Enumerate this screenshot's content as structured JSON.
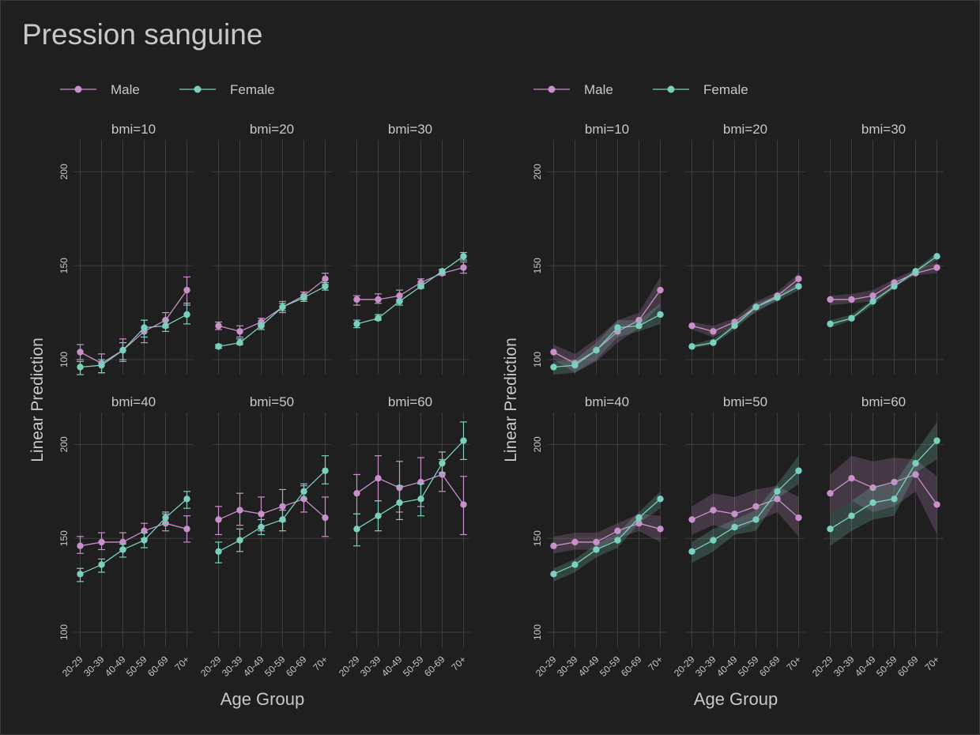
{
  "title": "Pression sanguine",
  "colors": {
    "male": "#c890c8",
    "female": "#7ad0bc",
    "background": "#1f1f1f",
    "text": "#c8c8c8",
    "grid": "#3e3e3e"
  },
  "chart_data": [
    {
      "type": "line",
      "variant": "error-bars",
      "legend": [
        "Male",
        "Female"
      ],
      "legend_position": "top",
      "facet_variable": "bmi",
      "facets": [
        "bmi=10",
        "bmi=20",
        "bmi=30",
        "bmi=40",
        "bmi=50",
        "bmi=60"
      ],
      "categories": [
        "20-29",
        "30-39",
        "40-49",
        "50-59",
        "60-69",
        "70+"
      ],
      "xlabel": "Age Group",
      "ylabel": "Linear Prediction",
      "yticks": [
        100,
        150,
        200
      ],
      "ylim": [
        92,
        217
      ],
      "grid": true,
      "series": [
        {
          "name": "Male",
          "panels": [
            {
              "values": [
                104,
                98,
                105,
                115,
                121,
                137
              ],
              "low": [
                100,
                93,
                99,
                109,
                117,
                129
              ],
              "high": [
                108,
                103,
                111,
                121,
                125,
                144
              ]
            },
            {
              "values": [
                118,
                115,
                120,
                128,
                134,
                143
              ],
              "low": [
                116,
                112,
                118,
                125,
                132,
                140
              ],
              "high": [
                120,
                118,
                122,
                131,
                136,
                146
              ]
            },
            {
              "values": [
                132,
                132,
                134,
                141,
                146,
                149
              ],
              "low": [
                129,
                130,
                131,
                139,
                145,
                146
              ],
              "high": [
                134,
                135,
                137,
                143,
                148,
                152
              ]
            },
            {
              "values": [
                146,
                148,
                148,
                154,
                158,
                155
              ],
              "low": [
                142,
                144,
                144,
                150,
                154,
                148
              ],
              "high": [
                151,
                153,
                153,
                158,
                163,
                162
              ]
            },
            {
              "values": [
                160,
                165,
                163,
                167,
                171,
                161
              ],
              "low": [
                152,
                157,
                154,
                159,
                164,
                151
              ],
              "high": [
                167,
                174,
                172,
                176,
                178,
                172
              ]
            },
            {
              "values": [
                174,
                182,
                177,
                180,
                184,
                168
              ],
              "low": [
                163,
                170,
                164,
                167,
                175,
                152
              ],
              "high": [
                184,
                194,
                191,
                193,
                192,
                183
              ]
            }
          ]
        },
        {
          "name": "Female",
          "panels": [
            {
              "values": [
                96,
                97,
                105,
                117,
                118,
                124
              ],
              "low": [
                92,
                93,
                100,
                112,
                115,
                119
              ],
              "high": [
                99,
                100,
                109,
                121,
                121,
                130
              ]
            },
            {
              "values": [
                107,
                109,
                118,
                128,
                133,
                139
              ],
              "low": [
                106,
                108,
                116,
                126,
                131,
                137
              ],
              "high": [
                108,
                111,
                119,
                130,
                134,
                141
              ]
            },
            {
              "values": [
                119,
                122,
                131,
                139,
                147,
                155
              ],
              "low": [
                117,
                121,
                129,
                138,
                146,
                153
              ],
              "high": [
                121,
                124,
                132,
                140,
                148,
                157
              ]
            },
            {
              "values": [
                131,
                136,
                144,
                149,
                161,
                171
              ],
              "low": [
                127,
                132,
                140,
                145,
                158,
                166
              ],
              "high": [
                134,
                139,
                147,
                153,
                164,
                175
              ]
            },
            {
              "values": [
                143,
                149,
                156,
                160,
                175,
                186
              ],
              "low": [
                137,
                143,
                152,
                154,
                171,
                179
              ],
              "high": [
                148,
                155,
                160,
                165,
                179,
                194
              ]
            },
            {
              "values": [
                155,
                162,
                169,
                171,
                190,
                202
              ],
              "low": [
                146,
                154,
                160,
                162,
                185,
                192
              ],
              "high": [
                163,
                170,
                178,
                179,
                196,
                212
              ]
            }
          ]
        }
      ]
    },
    {
      "type": "line",
      "variant": "ci-ribbons",
      "legend": [
        "Male",
        "Female"
      ],
      "legend_position": "top",
      "facet_variable": "bmi",
      "facets": [
        "bmi=10",
        "bmi=20",
        "bmi=30",
        "bmi=40",
        "bmi=50",
        "bmi=60"
      ],
      "categories": [
        "20-29",
        "30-39",
        "40-49",
        "50-59",
        "60-69",
        "70+"
      ],
      "xlabel": "Age Group",
      "ylabel": "Linear Prediction",
      "yticks": [
        100,
        150,
        200
      ],
      "ylim": [
        92,
        217
      ],
      "grid": true,
      "series": [
        {
          "name": "Male",
          "panels": [
            {
              "values": [
                104,
                98,
                105,
                115,
                121,
                137
              ],
              "low": [
                100,
                93,
                99,
                109,
                117,
                129
              ],
              "high": [
                108,
                103,
                111,
                121,
                125,
                144
              ]
            },
            {
              "values": [
                118,
                115,
                120,
                128,
                134,
                143
              ],
              "low": [
                116,
                112,
                118,
                125,
                132,
                140
              ],
              "high": [
                120,
                118,
                122,
                131,
                136,
                146
              ]
            },
            {
              "values": [
                132,
                132,
                134,
                141,
                146,
                149
              ],
              "low": [
                129,
                130,
                131,
                139,
                145,
                146
              ],
              "high": [
                134,
                135,
                137,
                143,
                148,
                152
              ]
            },
            {
              "values": [
                146,
                148,
                148,
                154,
                158,
                155
              ],
              "low": [
                142,
                144,
                144,
                150,
                154,
                148
              ],
              "high": [
                151,
                153,
                153,
                158,
                163,
                162
              ]
            },
            {
              "values": [
                160,
                165,
                163,
                167,
                171,
                161
              ],
              "low": [
                152,
                157,
                154,
                159,
                164,
                151
              ],
              "high": [
                167,
                174,
                172,
                176,
                178,
                172
              ]
            },
            {
              "values": [
                174,
                182,
                177,
                180,
                184,
                168
              ],
              "low": [
                163,
                170,
                164,
                167,
                175,
                152
              ],
              "high": [
                184,
                194,
                191,
                193,
                192,
                183
              ]
            }
          ]
        },
        {
          "name": "Female",
          "panels": [
            {
              "values": [
                96,
                97,
                105,
                117,
                118,
                124
              ],
              "low": [
                92,
                93,
                100,
                112,
                115,
                119
              ],
              "high": [
                99,
                100,
                109,
                121,
                121,
                130
              ]
            },
            {
              "values": [
                107,
                109,
                118,
                128,
                133,
                139
              ],
              "low": [
                106,
                108,
                116,
                126,
                131,
                137
              ],
              "high": [
                108,
                111,
                119,
                130,
                134,
                141
              ]
            },
            {
              "values": [
                119,
                122,
                131,
                139,
                147,
                155
              ],
              "low": [
                117,
                121,
                129,
                138,
                146,
                153
              ],
              "high": [
                121,
                124,
                132,
                140,
                148,
                157
              ]
            },
            {
              "values": [
                131,
                136,
                144,
                149,
                161,
                171
              ],
              "low": [
                127,
                132,
                140,
                145,
                158,
                166
              ],
              "high": [
                134,
                139,
                147,
                153,
                164,
                175
              ]
            },
            {
              "values": [
                143,
                149,
                156,
                160,
                175,
                186
              ],
              "low": [
                137,
                143,
                152,
                154,
                171,
                179
              ],
              "high": [
                148,
                155,
                160,
                165,
                179,
                194
              ]
            },
            {
              "values": [
                155,
                162,
                169,
                171,
                190,
                202
              ],
              "low": [
                146,
                154,
                160,
                162,
                185,
                192
              ],
              "high": [
                163,
                170,
                178,
                179,
                196,
                212
              ]
            }
          ]
        }
      ]
    }
  ]
}
